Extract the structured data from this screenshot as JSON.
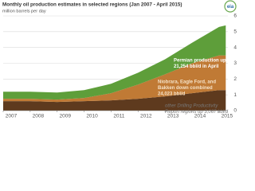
{
  "logo": "eia",
  "chart_data": {
    "type": "stacked-area",
    "title": "Monthly oil production estimates in selected regions (Jan 2007 - April 2015)",
    "subtitle": "million barrels per day",
    "x": [
      2007,
      2008,
      2009,
      2010,
      2011,
      2012,
      2013,
      2014,
      2015,
      2015.25
    ],
    "xlim": [
      2007,
      2015.33
    ],
    "xticks": [
      2007,
      2008,
      2009,
      2010,
      2011,
      2012,
      2013,
      2014,
      2015
    ],
    "ylim": [
      0,
      6
    ],
    "yticks": [
      0,
      1,
      2,
      3,
      4,
      5,
      6
    ],
    "grid": true,
    "series": [
      {
        "name": "other Drilling Productivity Report regions",
        "color": "#5e3a1e",
        "values": [
          0.6,
          0.6,
          0.55,
          0.6,
          0.65,
          0.75,
          0.9,
          1.1,
          1.3,
          1.3
        ]
      },
      {
        "name": "Niobrara, Eagle Ford, and Bakken",
        "color": "#c07a35",
        "values": [
          0.15,
          0.15,
          0.15,
          0.2,
          0.45,
          0.9,
          1.4,
          1.9,
          2.2,
          2.2
        ]
      },
      {
        "name": "Permian",
        "color": "#5e9e3a",
        "values": [
          0.45,
          0.45,
          0.45,
          0.5,
          0.6,
          0.75,
          0.95,
          1.3,
          1.8,
          1.9
        ]
      }
    ],
    "annotations": [
      {
        "lines": [
          "Permian production up",
          "21,254 bbl/d in April"
        ],
        "color": "#ffffff",
        "bold": true,
        "italic": false
      },
      {
        "lines": [
          "Niobrara, Eagle Ford, and",
          "Bakken down combined",
          "24,023 bbl/d"
        ],
        "color": "#f5e2c8",
        "bold": true,
        "italic": false
      },
      {
        "lines": [
          "other Drilling Productivity",
          "Report regions up 3,067 bbl/d"
        ],
        "color": "#777777",
        "bold": false,
        "italic": true
      }
    ]
  }
}
